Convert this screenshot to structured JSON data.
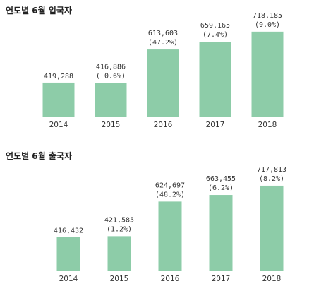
{
  "colors": {
    "bar": "#8dcca8",
    "axis": "#333333"
  },
  "chart_data": [
    {
      "type": "bar",
      "title": "연도별 6월 입국자",
      "categories": [
        "2014",
        "2015",
        "2016",
        "2017",
        "2018"
      ],
      "values": [
        419288,
        416886,
        613603,
        659165,
        718185
      ],
      "value_labels": [
        "419,288",
        "416,886",
        "613,603",
        "659,165",
        "718,185"
      ],
      "change_labels": [
        "",
        "(-0.6%)",
        "(47.2%)",
        "(7.4%)",
        "(9.0%)"
      ],
      "ylim": [
        220000,
        730000
      ],
      "grid": false
    },
    {
      "type": "bar",
      "title": "연도별 6월 출국자",
      "categories": [
        "2014",
        "2015",
        "2016",
        "2017",
        "2018"
      ],
      "values": [
        416432,
        421585,
        624697,
        663455,
        717813
      ],
      "value_labels": [
        "416,432",
        "421,585",
        "624,697",
        "663,455",
        "717,813"
      ],
      "change_labels": [
        "",
        "(1.2%)",
        "(48.2%)",
        "(6.2%)",
        "(8.2%)"
      ],
      "ylim": [
        220000,
        730000
      ],
      "grid": false
    }
  ]
}
